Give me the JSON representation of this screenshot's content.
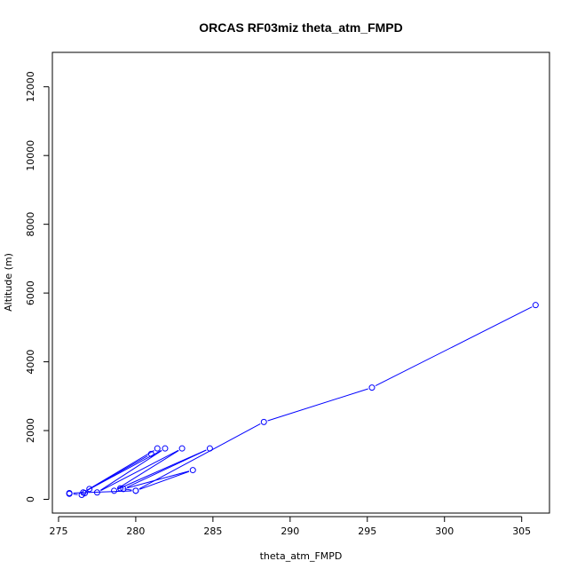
{
  "chart_data": {
    "type": "line",
    "title": "ORCAS RF03miz theta_atm_FMPD",
    "xlabel": "theta_atm_FMPD",
    "ylabel": "Altitude (m)",
    "xlim": [
      274.6,
      306.8
    ],
    "ylim": [
      -400,
      13000
    ],
    "xticks": [
      275,
      280,
      285,
      290,
      295,
      300,
      305
    ],
    "yticks": [
      0,
      2000,
      4000,
      6000,
      8000,
      10000,
      12000
    ],
    "grid": false,
    "line_color": "#0000ff",
    "marker": "open-circle",
    "series": [
      {
        "x": [
          305.9,
          295.3,
          288.3,
          280.0,
          275.7,
          275.7,
          276.5,
          276.7,
          277.0,
          281.0,
          281.4,
          276.6,
          281.9,
          277.5,
          283.0,
          278.6,
          284.8,
          279.2,
          283.7,
          280.0,
          279.0
        ],
        "y": [
          5650,
          3250,
          2250,
          250,
          180,
          160,
          130,
          180,
          300,
          1320,
          1480,
          200,
          1480,
          200,
          1480,
          250,
          1480,
          300,
          850,
          250,
          320
        ]
      }
    ]
  }
}
